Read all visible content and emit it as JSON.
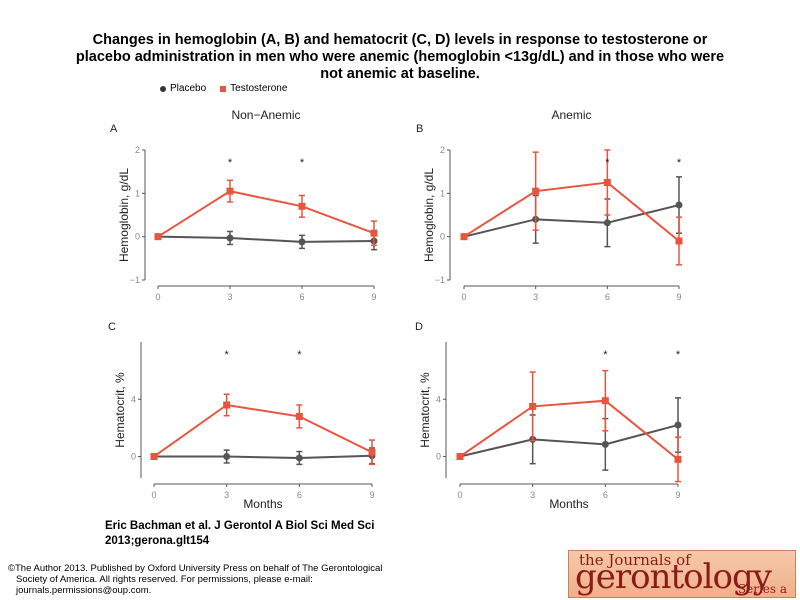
{
  "title_lines": [
    "Changes in hemoglobin (A, B) and hematocrit (C, D) levels in response to testosterone or",
    "placebo administration in men who were anemic (hemoglobin <13g/dL) and in those who were",
    "not anemic at baseline."
  ],
  "legend": [
    {
      "name": "Placebo",
      "color": "#555555",
      "marker": "circle"
    },
    {
      "name": "Testosterone",
      "color": "#e8553f",
      "marker": "square"
    }
  ],
  "chart_data": [
    {
      "type": "line",
      "panel": "A",
      "column_title": "Non−Anemic",
      "ylabel": "Hemoglobin, g/dL",
      "xlabel": "",
      "x": [
        0,
        3,
        6,
        9
      ],
      "xticks": [
        "0",
        "3",
        "6",
        "9"
      ],
      "ylim": [
        -1,
        2
      ],
      "yticks": [
        "−1",
        "0",
        "1",
        "2"
      ],
      "series": [
        {
          "name": "Placebo",
          "values": [
            0,
            -0.03,
            -0.12,
            -0.1
          ],
          "err": [
            0.02,
            0.15,
            0.15,
            0.2
          ]
        },
        {
          "name": "Testosterone",
          "values": [
            0,
            1.05,
            0.7,
            0.08
          ],
          "err": [
            0.02,
            0.25,
            0.25,
            0.28
          ]
        }
      ],
      "significant_x": [
        3,
        6
      ]
    },
    {
      "type": "line",
      "panel": "B",
      "column_title": "Anemic",
      "ylabel": "Hemoglobin, g/dL",
      "xlabel": "",
      "x": [
        0,
        3,
        6,
        9
      ],
      "xticks": [
        "0",
        "3",
        "6",
        "9"
      ],
      "ylim": [
        -1,
        2
      ],
      "yticks": [
        "−1",
        "0",
        "1",
        "2"
      ],
      "series": [
        {
          "name": "Placebo",
          "values": [
            0,
            0.4,
            0.32,
            0.73
          ],
          "err": [
            0.02,
            0.55,
            0.55,
            0.65
          ]
        },
        {
          "name": "Testosterone",
          "values": [
            0,
            1.05,
            1.25,
            -0.1
          ],
          "err": [
            0.02,
            0.9,
            0.75,
            0.55
          ]
        }
      ],
      "significant_x": [
        6,
        9
      ]
    },
    {
      "type": "line",
      "panel": "C",
      "column_title": "",
      "ylabel": "Hematocrit, %",
      "xlabel": "Months",
      "x": [
        0,
        3,
        6,
        9
      ],
      "xticks": [
        "0",
        "3",
        "6",
        "9"
      ],
      "ylim": [
        -1.5,
        8
      ],
      "yticks": [
        "0",
        "4"
      ],
      "series": [
        {
          "name": "Placebo",
          "values": [
            0,
            0,
            -0.1,
            0.05
          ],
          "err": [
            0.05,
            0.45,
            0.45,
            0.55
          ]
        },
        {
          "name": "Testosterone",
          "values": [
            0,
            3.6,
            2.8,
            0.3
          ],
          "err": [
            0.05,
            0.75,
            0.8,
            0.85
          ]
        }
      ],
      "significant_x": [
        3,
        6
      ]
    },
    {
      "type": "line",
      "panel": "D",
      "column_title": "",
      "ylabel": "Hematocrit, %",
      "xlabel": "Months",
      "x": [
        0,
        3,
        6,
        9
      ],
      "xticks": [
        "0",
        "3",
        "6",
        "9"
      ],
      "ylim": [
        -1.5,
        8
      ],
      "yticks": [
        "0",
        "4"
      ],
      "series": [
        {
          "name": "Placebo",
          "values": [
            0,
            1.2,
            0.85,
            2.2
          ],
          "err": [
            0.05,
            1.7,
            1.8,
            1.9
          ]
        },
        {
          "name": "Testosterone",
          "values": [
            0,
            3.5,
            3.9,
            -0.2
          ],
          "err": [
            0.05,
            2.4,
            2.1,
            1.55
          ]
        }
      ],
      "significant_x": [
        6,
        9
      ]
    }
  ],
  "citation": "Eric Bachman et al. J Gerontol A Biol Sci Med Sci 2013;gerona.glt154",
  "copyright_lines": [
    "©The Author 2013. Published by Oxford University Press on behalf of The Gerontological",
    "Society of America. All rights reserved. For permissions, please e-mail:",
    "journals.permissions@oup.com."
  ],
  "logo": {
    "line1": "the Journals of",
    "line2": "gerontology",
    "line3": "Series a"
  },
  "colors": {
    "placebo": "#555555",
    "testosterone": "#e8553f",
    "axis": "#555555",
    "grid_text": "#888888"
  }
}
